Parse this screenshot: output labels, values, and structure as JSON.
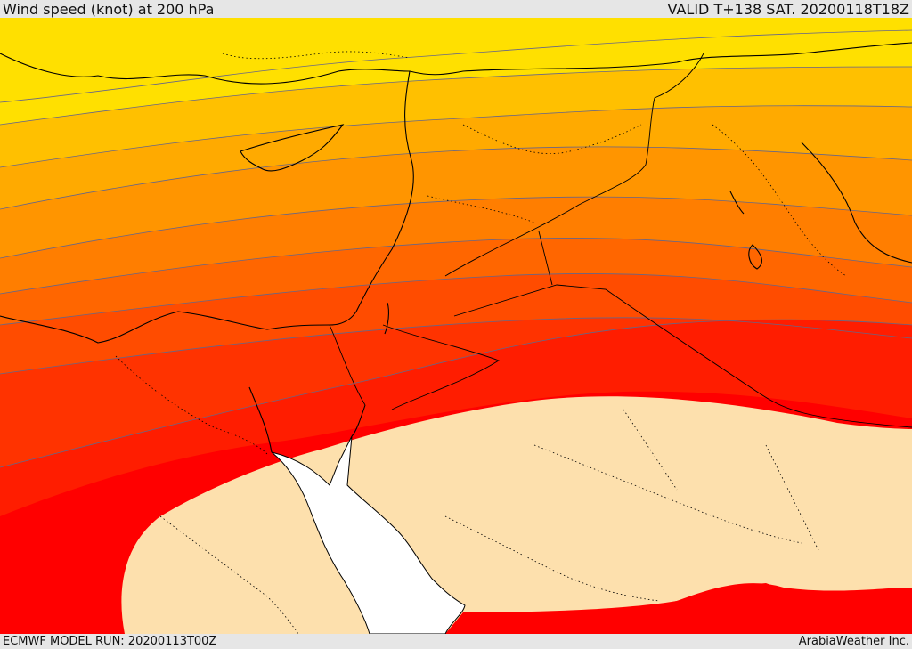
{
  "header": {
    "title": "Wind speed (knot) at 200 hPa",
    "valid": "VALID T+138 SAT. 20200118T18Z"
  },
  "footer": {
    "model_run": "ECMWF MODEL RUN: 20200113T00Z",
    "credit": "ArabiaWeather Inc."
  },
  "bands": [
    {
      "fill": "#ffe000"
    },
    {
      "fill": "#ffc000"
    },
    {
      "fill": "#ffaa00"
    },
    {
      "fill": "#ff9500"
    },
    {
      "fill": "#ff7e00"
    },
    {
      "fill": "#ff6600"
    },
    {
      "fill": "#ff4c00"
    },
    {
      "fill": "#ff3300"
    },
    {
      "fill": "#ff1d00"
    },
    {
      "fill": "#ff0000"
    },
    {
      "fill": "#fde0ad"
    }
  ],
  "colors": {
    "calm_region": "#fde0ad",
    "sea": "#ffffff",
    "coastline": "#000000",
    "contour": "#555577"
  }
}
